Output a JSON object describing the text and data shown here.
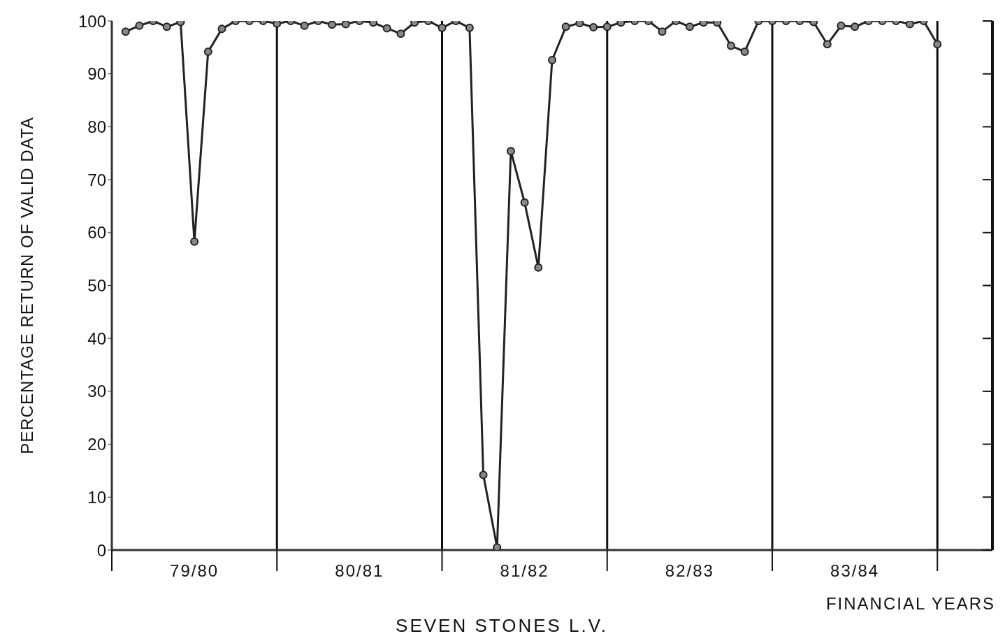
{
  "chart_data": {
    "type": "line",
    "title": "SEVEN STONES L.V.",
    "xlabel": "FINANCIAL YEARS",
    "ylabel": "PERCENTAGE RETURN OF VALID DATA",
    "categories": [
      null,
      null,
      null,
      null,
      null,
      "79/80",
      null,
      null,
      null,
      null,
      null,
      null,
      null,
      null,
      null,
      null,
      null,
      "80/81",
      null,
      null,
      null,
      null,
      null,
      null,
      null,
      null,
      null,
      null,
      null,
      "81/82",
      null,
      null,
      null,
      null,
      null,
      null,
      null,
      null,
      null,
      null,
      null,
      "82/83",
      null,
      null,
      null,
      null,
      null,
      null,
      null,
      null,
      null,
      null,
      null,
      "83/84",
      null,
      null,
      null,
      null,
      null,
      null
    ],
    "series": [
      {
        "color": "#222222",
        "values": [
          98,
          99.1,
          100,
          98.9,
          99.8,
          58.3,
          94.2,
          98.5,
          100,
          100,
          100,
          99.5,
          100,
          99.1,
          100,
          99.3,
          99.4,
          100,
          99.7,
          98.6,
          97.6,
          99.7,
          100,
          98.7,
          100,
          98.7,
          14.2,
          0.5,
          75.4,
          65.7,
          53.4,
          92.6,
          98.9,
          99.6,
          98.8,
          98.9,
          99.7,
          100,
          100,
          98,
          100,
          98.9,
          99.7,
          99.7,
          95.3,
          94.2,
          100,
          100,
          100,
          100,
          99.8,
          95.6,
          99.1,
          98.9,
          100,
          100,
          100,
          99.4,
          100,
          95.6
        ]
      }
    ],
    "ylim": [
      0,
      100
    ],
    "yticks": [
      0,
      10,
      20,
      30,
      40,
      50,
      60,
      70,
      80,
      90,
      100
    ],
    "grid": "x",
    "legend": false,
    "marker": "circle",
    "line_style": "solid"
  }
}
